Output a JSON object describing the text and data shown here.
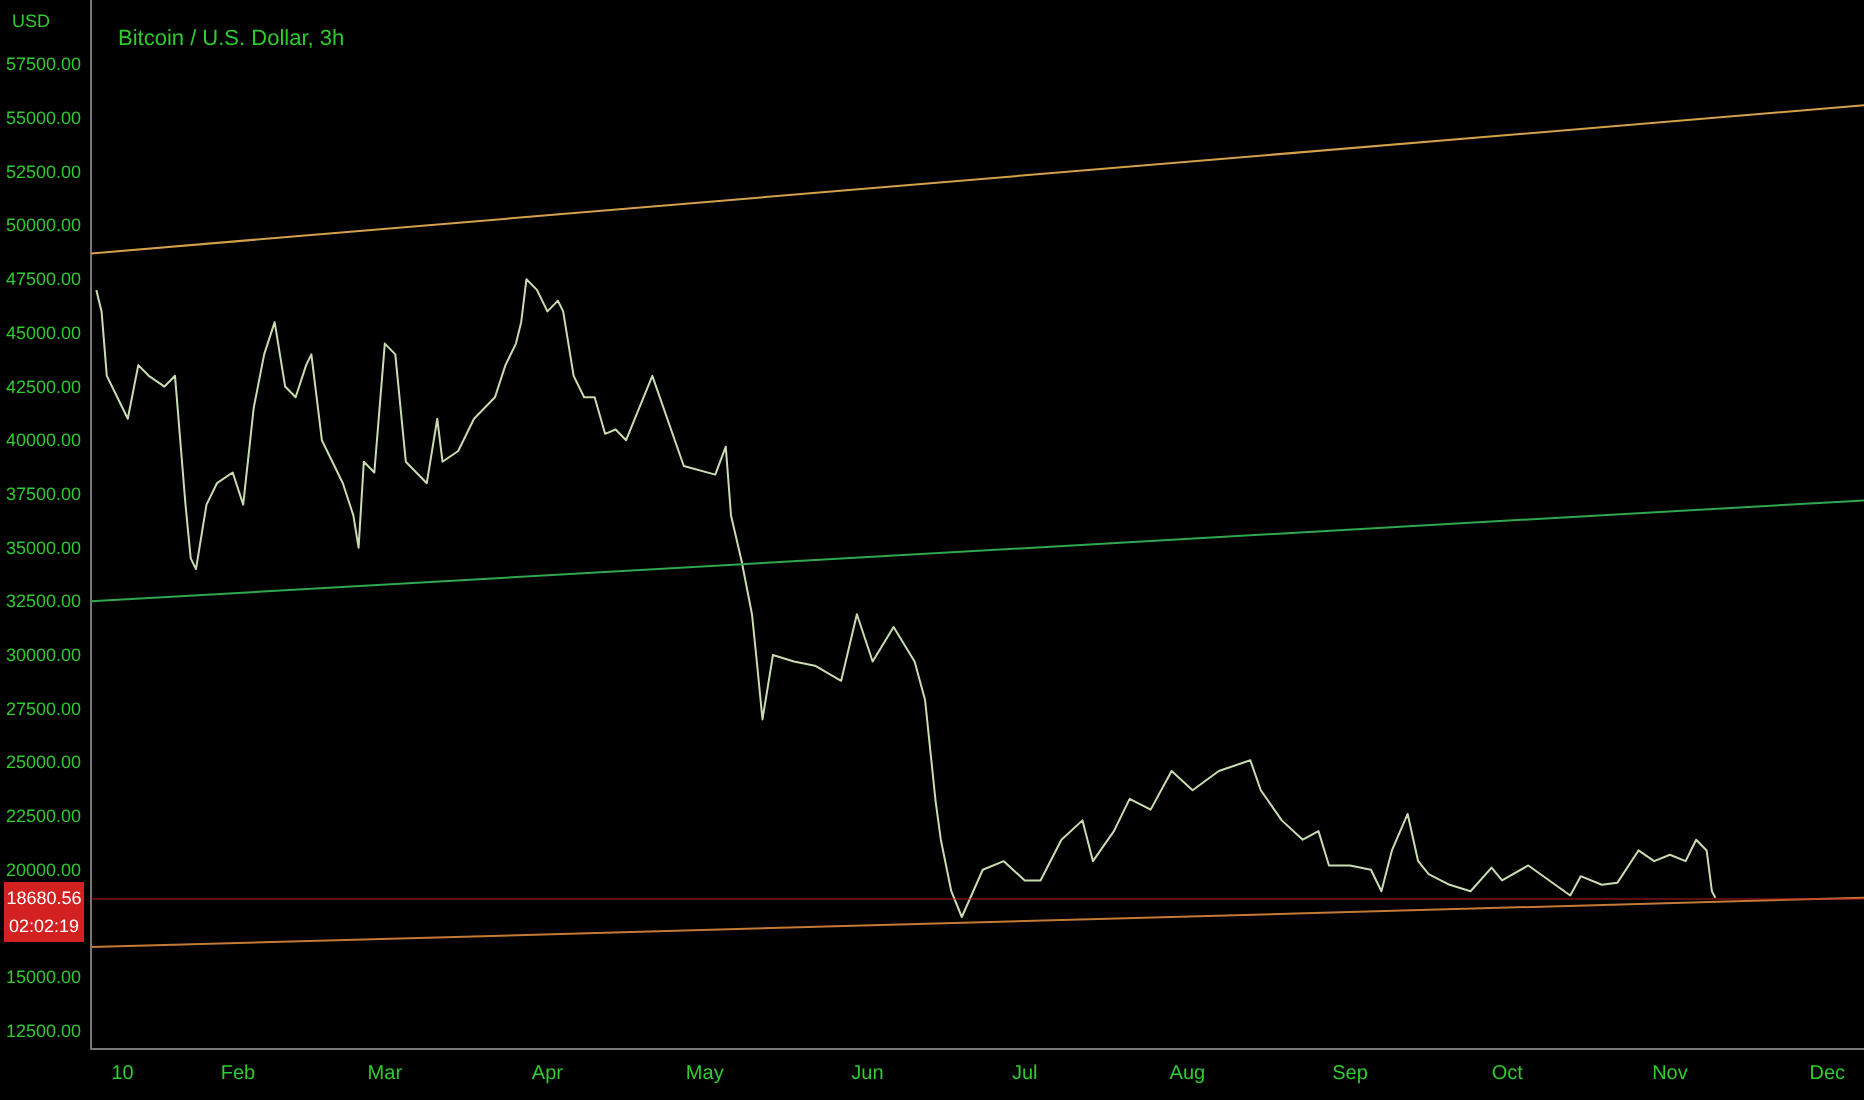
{
  "chart_data": {
    "type": "line",
    "title": "Bitcoin / U.S. Dollar, 3h",
    "ylabel": "USD",
    "xlim": [
      "--01-04",
      "--12-08"
    ],
    "xticks": [
      {
        "value": "--01-10",
        "label": "10"
      },
      {
        "value": "--02-01",
        "label": "Feb"
      },
      {
        "value": "--03-01",
        "label": "Mar"
      },
      {
        "value": "--04-01",
        "label": "Apr"
      },
      {
        "value": "--05-01",
        "label": "May"
      },
      {
        "value": "--06-01",
        "label": "Jun"
      },
      {
        "value": "--07-01",
        "label": "Jul"
      },
      {
        "value": "--08-01",
        "label": "Aug"
      },
      {
        "value": "--09-01",
        "label": "Sep"
      },
      {
        "value": "--10-01",
        "label": "Oct"
      },
      {
        "value": "--11-01",
        "label": "Nov"
      },
      {
        "value": "--12-01",
        "label": "Dec"
      }
    ],
    "ylim": [
      11700,
      60500
    ],
    "yticks": [
      {
        "value": 12500,
        "label": "12500.00"
      },
      {
        "value": 15000,
        "label": "15000.00"
      },
      {
        "value": 20000,
        "label": "20000.00"
      },
      {
        "value": 22500,
        "label": "22500.00"
      },
      {
        "value": 25000,
        "label": "25000.00"
      },
      {
        "value": 27500,
        "label": "27500.00"
      },
      {
        "value": 30000,
        "label": "30000.00"
      },
      {
        "value": 32500,
        "label": "32500.00"
      },
      {
        "value": 35000,
        "label": "35000.00"
      },
      {
        "value": 37500,
        "label": "37500.00"
      },
      {
        "value": 40000,
        "label": "40000.00"
      },
      {
        "value": 42500,
        "label": "42500.00"
      },
      {
        "value": 45000,
        "label": "45000.00"
      },
      {
        "value": 47500,
        "label": "47500.00"
      },
      {
        "value": 50000,
        "label": "50000.00"
      },
      {
        "value": 52500,
        "label": "52500.00"
      },
      {
        "value": 55000,
        "label": "55000.00"
      },
      {
        "value": 57500,
        "label": "57500.00"
      }
    ],
    "series": [
      {
        "color": "#c9dbb0",
        "x": [
          "--01-05",
          "--01-06",
          "--01-07",
          "--01-09",
          "--01-11",
          "--01-13",
          "--01-15",
          "--01-18",
          "--01-20",
          "--01-22",
          "--01-23",
          "--01-24",
          "--01-26",
          "--01-28",
          "--01-31",
          "--02-02",
          "--02-04",
          "--02-06",
          "--02-08",
          "--02-10",
          "--02-12",
          "--02-14",
          "--02-15",
          "--02-17",
          "--02-20",
          "--02-21",
          "--02-23",
          "--02-24",
          "--02-25",
          "--02-27",
          "--03-01",
          "--03-03",
          "--03-05",
          "--03-07",
          "--03-09",
          "--03-11",
          "--03-12",
          "--03-15",
          "--03-18",
          "--03-20",
          "--03-22",
          "--03-24",
          "--03-26",
          "--03-27",
          "--03-28",
          "--03-30",
          "--04-01",
          "--04-03",
          "--04-04",
          "--04-06",
          "--04-08",
          "--04-10",
          "--04-12",
          "--04-14",
          "--04-16",
          "--04-21",
          "--04-27",
          "--05-03",
          "--05-05",
          "--05-06",
          "--05-08",
          "--05-10",
          "--05-11",
          "--05-12",
          "--05-14",
          "--05-18",
          "--05-22",
          "--05-27",
          "--05-30",
          "--06-02",
          "--06-06",
          "--06-10",
          "--06-12",
          "--06-14",
          "--06-15",
          "--06-17",
          "--06-19",
          "--06-23",
          "--06-27",
          "--07-01",
          "--07-04",
          "--07-08",
          "--07-12",
          "--07-14",
          "--07-18",
          "--07-21",
          "--07-25",
          "--07-29",
          "--08-02",
          "--08-07",
          "--08-13",
          "--08-15",
          "--08-19",
          "--08-23",
          "--08-26",
          "--08-28",
          "--09-01",
          "--09-05",
          "--09-07",
          "--09-09",
          "--09-12",
          "--09-14",
          "--09-16",
          "--09-20",
          "--09-24",
          "--09-28",
          "--09-30",
          "--10-05",
          "--10-09",
          "--10-13",
          "--10-15",
          "--10-19",
          "--10-22",
          "--10-26",
          "--10-29",
          "--11-01",
          "--11-04",
          "--11-06",
          "--11-08",
          "--11-09",
          "--11-09T16:00"
        ],
        "values": [
          47000,
          46000,
          43000,
          42000,
          41000,
          43500,
          43000,
          42500,
          43000,
          37000,
          34500,
          34000,
          37000,
          38000,
          38500,
          37000,
          41500,
          44000,
          45500,
          42500,
          42000,
          43500,
          44000,
          40000,
          38500,
          38000,
          36500,
          35000,
          39000,
          38500,
          44500,
          44000,
          39000,
          38500,
          38000,
          41000,
          39000,
          39500,
          41000,
          41500,
          42000,
          43500,
          44500,
          45500,
          47500,
          47000,
          46000,
          46500,
          46000,
          43000,
          42000,
          42000,
          40300,
          40500,
          40000,
          43000,
          38800,
          38400,
          39700,
          36500,
          34400,
          31900,
          29500,
          27000,
          30000,
          29700,
          29500,
          28800,
          31900,
          29700,
          31300,
          29700,
          27900,
          23200,
          21400,
          19000,
          17800,
          20000,
          20400,
          19500,
          19500,
          21400,
          22300,
          20400,
          21800,
          23300,
          22800,
          24600,
          23700,
          24600,
          25100,
          23700,
          22300,
          21400,
          21800,
          20200,
          20200,
          20000,
          19000,
          20900,
          22600,
          20400,
          19800,
          19300,
          19000,
          20100,
          19500,
          20200,
          19500,
          18800,
          19700,
          19300,
          19400,
          20900,
          20400,
          20700,
          20400,
          21400,
          20900,
          19000,
          18700
        ]
      },
      {
        "color": "#d4a04c",
        "x": [
          "--01-04",
          "--12-08"
        ],
        "values": [
          48700,
          55600
        ]
      },
      {
        "color": "#2fa84f",
        "x": [
          "--01-04",
          "--12-08"
        ],
        "values": [
          32500,
          37200
        ]
      },
      {
        "color": "#c47a35",
        "x": [
          "--01-04",
          "--12-08"
        ],
        "values": [
          16400,
          18700
        ]
      }
    ],
    "ref_lines": [
      {
        "axis": "y",
        "value": 18680.56,
        "label": "18680.56",
        "color": "#d32020"
      }
    ],
    "annotations": [
      "02:02:19"
    ],
    "grid": false,
    "marker": "none",
    "line_style": "solid"
  }
}
